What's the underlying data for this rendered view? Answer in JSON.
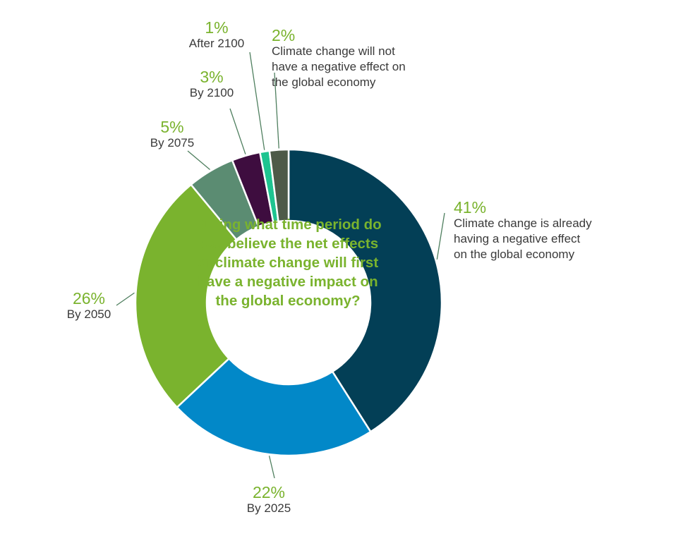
{
  "chart_data": {
    "type": "pie",
    "style": "donut",
    "title": "During what time period do you believe the net effects of climate change will first have a negative impact on the global economy?",
    "slices": [
      {
        "label": "Climate change is already having a negative effect on the global economy",
        "value": 41,
        "value_text": "41%",
        "color": "#033f56"
      },
      {
        "label": "By 2025",
        "value": 22,
        "value_text": "22%",
        "color": "#0288c8"
      },
      {
        "label": "By 2050",
        "value": 26,
        "value_text": "26%",
        "color": "#7ab32e"
      },
      {
        "label": "By 2075",
        "value": 5,
        "value_text": "5%",
        "color": "#5b8c72"
      },
      {
        "label": "By 2100",
        "value": 3,
        "value_text": "3%",
        "color": "#3e0d3f"
      },
      {
        "label": "After 2100",
        "value": 1,
        "value_text": "1%",
        "color": "#1ec490"
      },
      {
        "label": "Climate change will not have a negative effect on the global economy",
        "value": 2,
        "value_text": "2%",
        "color": "#4e5a48"
      }
    ]
  }
}
